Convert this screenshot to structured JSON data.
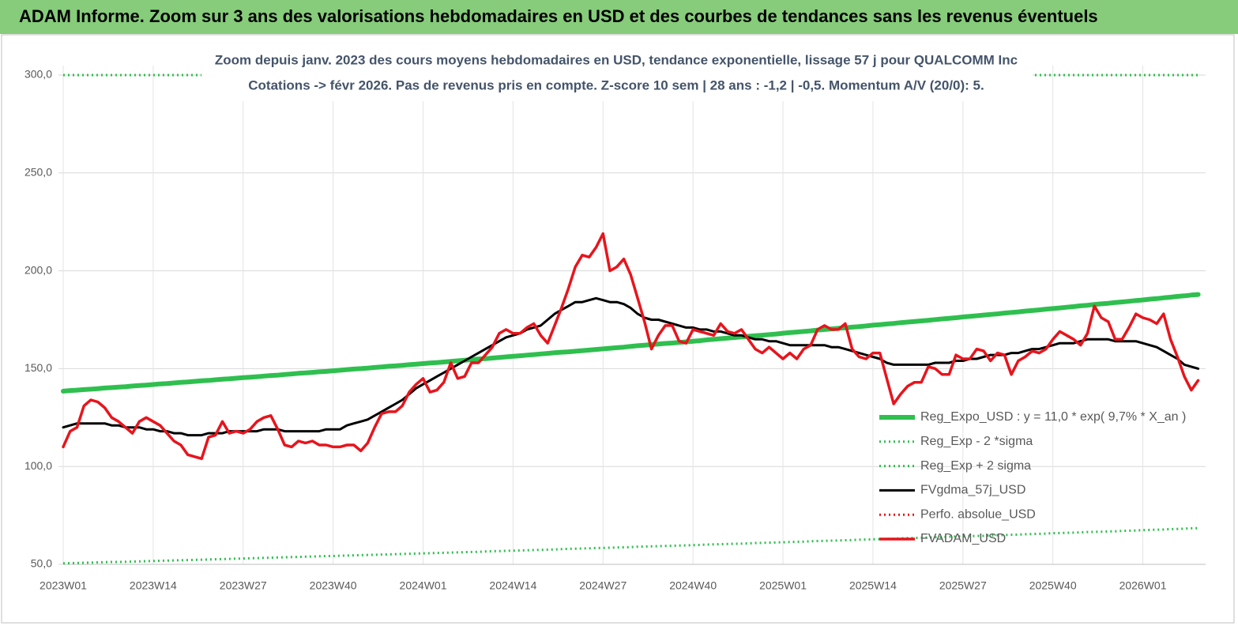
{
  "chart_data": {
    "type": "line",
    "title": "ADAM Informe. Zoom sur 3 ans des valorisations hebdomadaires en USD et des courbes de tendances sans les revenus éventuels",
    "subtitle": [
      "Zoom depuis janv. 2023 des cours moyens hebdomadaires en USD, tendance exponentielle, lissage 57 j pour QUALCOMM Inc",
      "Cotations -> févr 2026.  Pas de revenus pris en compte. Z-score 10 sem | 28 ans : -1,2 | -0,5. Momentum A/V (20/0): 5."
    ],
    "categories": [
      "2023W01",
      null,
      null,
      null,
      null,
      null,
      null,
      null,
      null,
      null,
      null,
      null,
      null,
      "2023W14",
      null,
      null,
      null,
      null,
      null,
      null,
      null,
      null,
      null,
      null,
      null,
      null,
      "2023W27",
      null,
      null,
      null,
      null,
      null,
      null,
      null,
      null,
      null,
      null,
      null,
      null,
      "2023W40",
      null,
      null,
      null,
      null,
      null,
      null,
      null,
      null,
      null,
      null,
      null,
      null,
      "2024W01",
      null,
      null,
      null,
      null,
      null,
      null,
      null,
      null,
      null,
      null,
      null,
      null,
      "2024W14",
      null,
      null,
      null,
      null,
      null,
      null,
      null,
      null,
      null,
      null,
      null,
      null,
      "2024W27",
      null,
      null,
      null,
      null,
      null,
      null,
      null,
      null,
      null,
      null,
      null,
      null,
      "2024W40",
      null,
      null,
      null,
      null,
      null,
      null,
      null,
      null,
      null,
      null,
      null,
      null,
      "2025W01",
      null,
      null,
      null,
      null,
      null,
      null,
      null,
      null,
      null,
      null,
      null,
      null,
      "2025W14",
      null,
      null,
      null,
      null,
      null,
      null,
      null,
      null,
      null,
      null,
      null,
      null,
      "2025W27",
      null,
      null,
      null,
      null,
      null,
      null,
      null,
      null,
      null,
      null,
      null,
      null,
      "2025W40",
      null,
      null,
      null,
      null,
      null,
      null,
      null,
      null,
      null,
      null,
      null,
      null,
      "2026W01",
      null,
      null,
      null,
      null,
      null,
      null,
      null,
      null
    ],
    "ylim": [
      50,
      300
    ],
    "yticks": [
      {
        "value": 50,
        "label": "50,0"
      },
      {
        "value": 100,
        "label": "100,0"
      },
      {
        "value": 150,
        "label": "150,0"
      },
      {
        "value": 200,
        "label": "200,0"
      },
      {
        "value": 250,
        "label": "250,0"
      },
      {
        "value": 300,
        "label": "300,0"
      }
    ],
    "grid": true,
    "legend": "right",
    "series": [
      {
        "name": "Reg_Expo_USD : y = 11,0 * exp( 9,7% *  X_an )",
        "color": "#2fbf4f",
        "style": "thick",
        "values": [
          138.5,
          138.8,
          139.0,
          139.3,
          139.5,
          139.8,
          140.1,
          140.3,
          140.6,
          140.8,
          141.1,
          141.4,
          141.6,
          141.9,
          142.2,
          142.4,
          142.7,
          143.0,
          143.2,
          143.5,
          143.8,
          144.0,
          144.3,
          144.6,
          144.8,
          145.1,
          145.4,
          145.6,
          145.9,
          146.2,
          146.5,
          146.7,
          147.0,
          147.3,
          147.6,
          147.8,
          148.1,
          148.4,
          148.6,
          148.9,
          149.2,
          149.5,
          149.8,
          150.0,
          150.3,
          150.6,
          150.9,
          151.2,
          151.4,
          151.7,
          152.0,
          152.3,
          152.6,
          152.9,
          153.1,
          153.4,
          153.7,
          154.0,
          154.3,
          154.6,
          154.9,
          155.1,
          155.4,
          155.7,
          156.0,
          156.3,
          156.6,
          156.9,
          157.2,
          157.5,
          157.8,
          158.1,
          158.4,
          158.6,
          158.9,
          159.2,
          159.5,
          159.8,
          160.1,
          160.4,
          160.7,
          161.0,
          161.4,
          161.7,
          162.0,
          162.3,
          162.6,
          162.9,
          163.1,
          163.4,
          163.7,
          164.0,
          164.3,
          164.7,
          165.0,
          165.3,
          165.6,
          165.9,
          166.2,
          166.5,
          166.8,
          167.1,
          167.4,
          167.7,
          168.1,
          168.4,
          168.7,
          169.0,
          169.3,
          169.7,
          170.0,
          170.3,
          170.6,
          170.9,
          171.2,
          171.5,
          171.8,
          172.2,
          172.5,
          172.8,
          173.1,
          173.5,
          173.8,
          174.1,
          174.4,
          174.7,
          175.1,
          175.4,
          175.7,
          176.0,
          176.4,
          176.7,
          177.0,
          177.4,
          177.7,
          178.0,
          178.4,
          178.7,
          179.0,
          179.4,
          179.7,
          180.0,
          180.4,
          180.7,
          181.0,
          181.4,
          181.7,
          182.1,
          182.4,
          182.8,
          183.1,
          183.4,
          183.8,
          184.1,
          184.4,
          184.8,
          185.1,
          185.5,
          185.8,
          186.2,
          186.5,
          186.9,
          187.2,
          187.6,
          187.9
        ]
      },
      {
        "name": "Reg_Exp - 2 *sigma",
        "color": "#2fbf4f",
        "style": "dotted",
        "values": [
          50.5,
          50.6,
          50.7,
          50.8,
          50.9,
          51.0,
          51.1,
          51.2,
          51.2,
          51.3,
          51.4,
          51.5,
          51.6,
          51.7,
          51.8,
          51.9,
          52.0,
          52.1,
          52.2,
          52.3,
          52.4,
          52.5,
          52.6,
          52.7,
          52.8,
          52.9,
          53.0,
          53.1,
          53.2,
          53.3,
          53.4,
          53.5,
          53.6,
          53.7,
          53.8,
          53.9,
          54.0,
          54.1,
          54.2,
          54.3,
          54.4,
          54.5,
          54.6,
          54.7,
          54.8,
          54.9,
          55.0,
          55.1,
          55.2,
          55.3,
          55.4,
          55.5,
          55.6,
          55.7,
          55.8,
          55.9,
          56.0,
          56.1,
          56.2,
          56.3,
          56.4,
          56.6,
          56.7,
          56.8,
          56.9,
          57.0,
          57.1,
          57.2,
          57.3,
          57.4,
          57.5,
          57.6,
          57.8,
          57.9,
          58.0,
          58.1,
          58.2,
          58.3,
          58.4,
          58.5,
          58.6,
          58.7,
          58.8,
          59.0,
          59.1,
          59.2,
          59.3,
          59.4,
          59.5,
          59.6,
          59.7,
          59.8,
          59.9,
          60.1,
          60.2,
          60.3,
          60.4,
          60.5,
          60.6,
          60.7,
          60.9,
          61.0,
          61.1,
          61.2,
          61.3,
          61.4,
          61.5,
          61.6,
          61.8,
          61.9,
          62.0,
          62.1,
          62.2,
          62.3,
          62.4,
          62.6,
          62.7,
          62.8,
          62.9,
          63.0,
          63.1,
          63.3,
          63.4,
          63.5,
          63.6,
          63.7,
          63.8,
          63.9,
          64.1,
          64.2,
          64.3,
          64.4,
          64.5,
          64.6,
          64.8,
          64.9,
          65.0,
          65.1,
          65.2,
          65.4,
          65.5,
          65.6,
          65.7,
          65.9,
          66.0,
          66.1,
          66.2,
          66.3,
          66.5,
          66.6,
          66.7,
          66.8,
          66.9,
          67.1,
          67.2,
          67.3,
          67.5,
          67.6,
          67.7,
          67.8,
          68.0,
          68.1,
          68.2,
          68.4,
          68.5
        ]
      },
      {
        "name": "Reg_Exp + 2 sigma",
        "color": "#2fbf4f",
        "style": "dotted",
        "values": [
          300,
          300,
          300,
          300,
          300,
          300,
          300,
          300,
          300,
          300,
          300,
          300,
          300,
          300,
          300,
          300,
          300,
          300,
          300,
          300,
          300,
          300,
          300,
          300,
          300,
          300,
          300,
          300,
          300,
          300,
          300,
          300,
          300,
          300,
          300,
          300,
          300,
          300,
          300,
          300,
          300,
          300,
          300,
          300,
          300,
          300,
          300,
          300,
          300,
          300,
          300,
          300,
          300,
          300,
          300,
          300,
          300,
          300,
          300,
          300,
          300,
          300,
          300,
          300,
          300,
          300,
          300,
          300,
          300,
          300,
          300,
          300,
          300,
          300,
          300,
          300,
          300,
          300,
          300,
          300,
          300,
          300,
          300,
          300,
          300,
          300,
          300,
          300,
          300,
          300,
          300,
          300,
          300,
          300,
          300,
          300,
          300,
          300,
          300,
          300,
          300,
          300,
          300,
          300,
          300,
          300,
          300,
          300,
          300,
          300,
          300,
          300,
          300,
          300,
          300,
          300,
          300,
          300,
          300,
          300,
          300,
          300,
          300,
          300,
          300,
          300,
          300,
          300,
          300,
          300,
          300,
          300,
          300,
          300,
          300,
          300,
          300,
          300,
          300,
          300,
          300,
          300,
          300,
          300,
          300,
          300,
          300,
          300,
          300,
          300,
          300,
          300,
          300,
          300,
          300,
          300,
          300,
          300,
          300,
          300,
          300,
          300,
          300,
          300,
          300
        ]
      },
      {
        "name": "FVgdma_57j_USD",
        "color": "#000000",
        "style": "solid",
        "values": [
          120,
          121,
          122,
          122,
          122,
          122,
          122,
          121,
          121,
          120,
          120,
          120,
          119,
          119,
          118,
          118,
          117,
          117,
          116,
          116,
          116,
          117,
          117,
          117,
          118,
          118,
          118,
          118,
          118,
          119,
          119,
          119,
          118,
          118,
          118,
          118,
          118,
          118,
          119,
          119,
          119,
          121,
          122,
          123,
          124,
          126,
          128,
          130,
          132,
          134,
          137,
          140,
          142,
          144,
          146,
          148,
          150,
          152,
          154,
          156,
          158,
          160,
          162,
          164,
          166,
          167,
          168,
          170,
          171,
          172,
          175,
          178,
          180,
          182,
          184,
          184,
          185,
          186,
          185,
          184,
          184,
          183,
          181,
          178,
          176,
          175,
          175,
          174,
          173,
          172,
          171,
          171,
          170,
          170,
          169,
          169,
          168,
          167,
          167,
          166,
          165,
          165,
          164,
          164,
          163,
          162,
          162,
          162,
          162,
          162,
          162,
          161,
          161,
          160,
          159,
          158,
          157,
          156,
          155,
          153,
          152,
          152,
          152,
          152,
          152,
          152,
          153,
          153,
          153,
          154,
          154,
          155,
          155,
          156,
          157,
          157,
          157,
          158,
          158,
          159,
          160,
          160,
          161,
          162,
          163,
          163,
          163,
          164,
          165,
          165,
          165,
          165,
          164,
          164,
          164,
          164,
          163,
          162,
          161,
          159,
          157,
          155,
          152,
          151,
          150
        ]
      },
      {
        "name": "Perfo. absolue_USD",
        "color": "#e8141c",
        "style": "dotted",
        "values": [
          null,
          null,
          null,
          null,
          null,
          null,
          null,
          null,
          null,
          null,
          null,
          null,
          null,
          null,
          null,
          null,
          null,
          null,
          null,
          null,
          null,
          null,
          null,
          null,
          null,
          null,
          null,
          null,
          null,
          null,
          null,
          null,
          null,
          null,
          null,
          null,
          null,
          null,
          null,
          null,
          null,
          null,
          null,
          null,
          null,
          null,
          null,
          null,
          null,
          null,
          null,
          null,
          null,
          null,
          null,
          null,
          null,
          null,
          null,
          null,
          null,
          null,
          null,
          null,
          null,
          null,
          null,
          null,
          null,
          null,
          null,
          null,
          null,
          null,
          null,
          null,
          null,
          null,
          null,
          null,
          null,
          null,
          null,
          null,
          null,
          null,
          null,
          null,
          null,
          null,
          null,
          null,
          null,
          null,
          null,
          null,
          null,
          null,
          null,
          null,
          null,
          null,
          null,
          null,
          null,
          null,
          null,
          null,
          null,
          null,
          null,
          null,
          null,
          null,
          null,
          null,
          null,
          null,
          null,
          null,
          null,
          null,
          null,
          null,
          null,
          null,
          null,
          null,
          null,
          null,
          null,
          null,
          null,
          null,
          null,
          null,
          null,
          null,
          null,
          null,
          null,
          null,
          null,
          null,
          null,
          null,
          null,
          null,
          null,
          null,
          null,
          null,
          null,
          null,
          null,
          null,
          null,
          null,
          null,
          null,
          null,
          null,
          null,
          null,
          null
        ]
      },
      {
        "name": "FVADAM_USD",
        "color": "#e8141c",
        "style": "solid",
        "values": [
          110,
          118,
          120,
          131,
          134,
          133,
          130,
          125,
          123,
          120,
          117,
          123,
          125,
          123,
          121,
          117,
          113,
          111,
          106,
          105,
          104,
          115,
          116,
          123,
          117,
          118,
          117,
          119,
          123,
          125,
          126,
          119,
          111,
          110,
          113,
          112,
          113,
          111,
          111,
          110,
          110,
          111,
          111,
          108,
          112,
          120,
          127,
          128,
          128,
          131,
          138,
          142,
          145,
          138,
          139,
          143,
          153,
          145,
          146,
          153,
          153,
          157,
          161,
          168,
          170,
          168,
          168,
          171,
          173,
          167,
          163,
          172,
          181,
          191,
          202,
          208,
          207,
          212,
          219,
          200,
          202,
          206,
          198,
          186,
          174,
          160,
          167,
          172,
          172,
          164,
          163,
          170,
          169,
          168,
          167,
          173,
          169,
          168,
          170,
          165,
          160,
          158,
          161,
          158,
          155,
          158,
          155,
          160,
          162,
          170,
          172,
          170,
          170,
          173,
          160,
          156,
          155,
          158,
          158,
          145,
          132,
          137,
          141,
          143,
          143,
          151,
          150,
          147,
          147,
          157,
          155,
          155,
          160,
          159,
          154,
          158,
          157,
          147,
          154,
          156,
          159,
          158,
          160,
          165,
          169,
          167,
          165,
          162,
          168,
          182,
          176,
          174,
          165,
          165,
          171,
          178,
          176,
          175,
          173,
          178,
          165,
          156,
          146,
          139,
          144
        ]
      }
    ]
  }
}
